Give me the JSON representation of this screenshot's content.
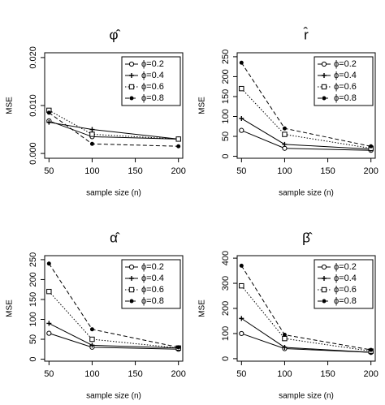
{
  "chart_data": [
    {
      "type": "line",
      "title": "φ̂",
      "x_label": "sample size (n)",
      "y_label": "MSE",
      "x": [
        50,
        100,
        200
      ],
      "xlim": [
        45,
        205
      ],
      "xticks": [
        50,
        100,
        150,
        200
      ],
      "ylim": [
        -0.001,
        0.021
      ],
      "yticks": [
        {
          "value": 0,
          "label": "0.000"
        },
        {
          "value": 0.01,
          "label": "0.010"
        },
        {
          "value": 0.02,
          "label": "0.020"
        }
      ],
      "legend": "top-right",
      "series": [
        {
          "name": "ϕ=0.2",
          "color": "#000000",
          "marker": "circle",
          "dash": "solid",
          "values": [
            0.0068,
            0.0035,
            0.003
          ]
        },
        {
          "name": "ϕ=0.4",
          "color": "#000000",
          "marker": "plus",
          "dash": "solid",
          "values": [
            0.0065,
            0.005,
            0.003
          ]
        },
        {
          "name": "ϕ=0.6",
          "color": "#000000",
          "marker": "square",
          "dash": "dotted",
          "values": [
            0.009,
            0.004,
            0.003
          ]
        },
        {
          "name": "ϕ=0.8",
          "color": "#000000",
          "marker": "dot",
          "dash": "dashed",
          "values": [
            0.0085,
            0.002,
            0.0015
          ]
        }
      ]
    },
    {
      "type": "line",
      "title": "r̂",
      "x_label": "sample size (n)",
      "y_label": "MSE",
      "x": [
        50,
        100,
        200
      ],
      "xlim": [
        45,
        205
      ],
      "xticks": [
        50,
        100,
        150,
        200
      ],
      "ylim": [
        -5,
        260
      ],
      "yticks": [
        0,
        50,
        100,
        150,
        200,
        250
      ],
      "legend": "top-right",
      "series": [
        {
          "name": "ϕ=0.2",
          "color": "#000000",
          "marker": "circle",
          "dash": "solid",
          "values": [
            65,
            20,
            15
          ]
        },
        {
          "name": "ϕ=0.4",
          "color": "#000000",
          "marker": "plus",
          "dash": "solid",
          "values": [
            95,
            30,
            18
          ]
        },
        {
          "name": "ϕ=0.6",
          "color": "#000000",
          "marker": "square",
          "dash": "dotted",
          "values": [
            170,
            55,
            20
          ]
        },
        {
          "name": "ϕ=0.8",
          "color": "#000000",
          "marker": "dot",
          "dash": "dashed",
          "values": [
            235,
            70,
            25
          ]
        }
      ]
    },
    {
      "type": "line",
      "title": "α̂",
      "x_label": "sample size (n)",
      "y_label": "MSE",
      "x": [
        50,
        100,
        200
      ],
      "xlim": [
        45,
        205
      ],
      "xticks": [
        50,
        100,
        150,
        200
      ],
      "ylim": [
        -5,
        260
      ],
      "yticks": [
        0,
        50,
        100,
        150,
        200,
        250
      ],
      "legend": "top-right",
      "series": [
        {
          "name": "ϕ=0.2",
          "color": "#000000",
          "marker": "circle",
          "dash": "solid",
          "values": [
            65,
            30,
            25
          ]
        },
        {
          "name": "ϕ=0.4",
          "color": "#000000",
          "marker": "plus",
          "dash": "solid",
          "values": [
            90,
            35,
            28
          ]
        },
        {
          "name": "ϕ=0.6",
          "color": "#000000",
          "marker": "square",
          "dash": "dotted",
          "values": [
            170,
            50,
            28
          ]
        },
        {
          "name": "ϕ=0.8",
          "color": "#000000",
          "marker": "dot",
          "dash": "dashed",
          "values": [
            240,
            75,
            30
          ]
        }
      ]
    },
    {
      "type": "line",
      "title": "β̂",
      "x_label": "sample size (n)",
      "y_label": "MSE",
      "x": [
        50,
        100,
        200
      ],
      "xlim": [
        45,
        205
      ],
      "xticks": [
        50,
        100,
        150,
        200
      ],
      "ylim": [
        -10,
        410
      ],
      "yticks": [
        0,
        100,
        200,
        300,
        400
      ],
      "legend": "top-right",
      "series": [
        {
          "name": "ϕ=0.2",
          "color": "#000000",
          "marker": "circle",
          "dash": "solid",
          "values": [
            100,
            40,
            25
          ]
        },
        {
          "name": "ϕ=0.4",
          "color": "#000000",
          "marker": "plus",
          "dash": "solid",
          "values": [
            160,
            45,
            25
          ]
        },
        {
          "name": "ϕ=0.6",
          "color": "#000000",
          "marker": "square",
          "dash": "dotted",
          "values": [
            290,
            80,
            30
          ]
        },
        {
          "name": "ϕ=0.8",
          "color": "#000000",
          "marker": "dot",
          "dash": "dashed",
          "values": [
            370,
            95,
            35
          ]
        }
      ]
    }
  ]
}
